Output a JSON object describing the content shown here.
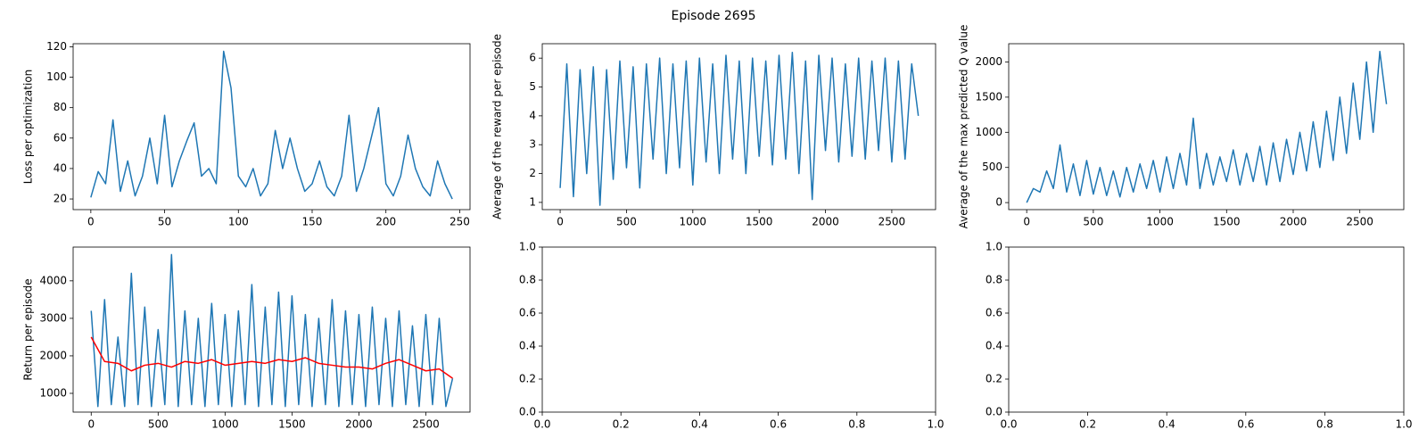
{
  "title": "Episode 2695",
  "chart_data": [
    {
      "type": "line",
      "ylabel": "Loss per optimization",
      "xlim": [
        -12,
        257
      ],
      "xticks": [
        0,
        50,
        100,
        150,
        200,
        250
      ],
      "ylim": [
        13,
        122
      ],
      "yticks": [
        20,
        40,
        60,
        80,
        100,
        120
      ],
      "series": [
        {
          "color": "#1f77b4",
          "x": [
            0,
            5,
            10,
            15,
            20,
            25,
            30,
            35,
            40,
            45,
            50,
            55,
            60,
            65,
            70,
            75,
            80,
            85,
            90,
            95,
            100,
            105,
            110,
            115,
            120,
            125,
            130,
            135,
            140,
            145,
            150,
            155,
            160,
            165,
            170,
            175,
            180,
            185,
            190,
            195,
            200,
            205,
            210,
            215,
            220,
            225,
            230,
            235,
            240,
            245
          ],
          "values": [
            21,
            38,
            30,
            72,
            25,
            45,
            22,
            35,
            60,
            30,
            75,
            28,
            45,
            58,
            70,
            35,
            40,
            30,
            117,
            93,
            35,
            28,
            40,
            22,
            30,
            65,
            40,
            60,
            40,
            25,
            30,
            45,
            28,
            22,
            35,
            75,
            25,
            40,
            60,
            80,
            30,
            22,
            35,
            62,
            40,
            28,
            22,
            45,
            30,
            20
          ]
        }
      ]
    },
    {
      "type": "line",
      "ylabel": "Average of the reward per episode",
      "xlim": [
        -135,
        2830
      ],
      "xticks": [
        0,
        500,
        1000,
        1500,
        2000,
        2500
      ],
      "ylim": [
        0.75,
        6.5
      ],
      "yticks": [
        1,
        2,
        3,
        4,
        5,
        6
      ],
      "series": [
        {
          "color": "#1f77b4",
          "x": [
            0,
            50,
            100,
            150,
            200,
            250,
            300,
            350,
            400,
            450,
            500,
            550,
            600,
            650,
            700,
            750,
            800,
            850,
            900,
            950,
            1000,
            1050,
            1100,
            1150,
            1200,
            1250,
            1300,
            1350,
            1400,
            1450,
            1500,
            1550,
            1600,
            1650,
            1700,
            1750,
            1800,
            1850,
            1900,
            1950,
            2000,
            2050,
            2100,
            2150,
            2200,
            2250,
            2300,
            2350,
            2400,
            2450,
            2500,
            2550,
            2600,
            2650,
            2700
          ],
          "values": [
            1.5,
            5.8,
            1.2,
            5.6,
            2.0,
            5.7,
            0.9,
            5.6,
            1.8,
            5.9,
            2.2,
            5.7,
            1.5,
            5.8,
            2.5,
            6.0,
            2.0,
            5.8,
            2.2,
            5.9,
            1.6,
            6.0,
            2.4,
            5.8,
            2.0,
            6.1,
            2.5,
            5.9,
            2.0,
            6.0,
            2.6,
            5.9,
            2.3,
            6.1,
            2.5,
            6.2,
            2.0,
            5.9,
            1.1,
            6.1,
            2.8,
            6.0,
            2.4,
            5.8,
            2.6,
            6.0,
            2.5,
            5.9,
            2.8,
            6.0,
            2.4,
            5.9,
            2.5,
            5.8,
            4.0
          ]
        }
      ]
    },
    {
      "type": "line",
      "ylabel": "Average of the max predicted Q value",
      "xlim": [
        -135,
        2830
      ],
      "xticks": [
        0,
        500,
        1000,
        1500,
        2000,
        2500
      ],
      "ylim": [
        -100,
        2260
      ],
      "yticks": [
        0,
        500,
        1000,
        1500,
        2000
      ],
      "series": [
        {
          "color": "#1f77b4",
          "x": [
            0,
            50,
            100,
            150,
            200,
            250,
            300,
            350,
            400,
            450,
            500,
            550,
            600,
            650,
            700,
            750,
            800,
            850,
            900,
            950,
            1000,
            1050,
            1100,
            1150,
            1200,
            1250,
            1300,
            1350,
            1400,
            1450,
            1500,
            1550,
            1600,
            1650,
            1700,
            1750,
            1800,
            1850,
            1900,
            1950,
            2000,
            2050,
            2100,
            2150,
            2200,
            2250,
            2300,
            2350,
            2400,
            2450,
            2500,
            2550,
            2600,
            2650,
            2700
          ],
          "values": [
            0,
            200,
            150,
            450,
            200,
            820,
            150,
            550,
            100,
            600,
            120,
            500,
            100,
            450,
            80,
            500,
            150,
            550,
            200,
            600,
            150,
            650,
            200,
            700,
            250,
            1200,
            200,
            700,
            250,
            650,
            300,
            750,
            250,
            700,
            300,
            800,
            250,
            850,
            300,
            900,
            400,
            1000,
            450,
            1150,
            500,
            1300,
            600,
            1500,
            700,
            1700,
            900,
            2000,
            1000,
            2150,
            1400
          ]
        }
      ]
    },
    {
      "type": "line",
      "ylabel": "Return per episode",
      "xlim": [
        -135,
        2830
      ],
      "xticks": [
        0,
        500,
        1000,
        1500,
        2000,
        2500
      ],
      "ylim": [
        500,
        4900
      ],
      "yticks": [
        1000,
        2000,
        3000,
        4000
      ],
      "series": [
        {
          "color": "#1f77b4",
          "x": [
            0,
            50,
            100,
            150,
            200,
            250,
            300,
            350,
            400,
            450,
            500,
            550,
            600,
            650,
            700,
            750,
            800,
            850,
            900,
            950,
            1000,
            1050,
            1100,
            1150,
            1200,
            1250,
            1300,
            1350,
            1400,
            1450,
            1500,
            1550,
            1600,
            1650,
            1700,
            1750,
            1800,
            1850,
            1900,
            1950,
            2000,
            2050,
            2100,
            2150,
            2200,
            2250,
            2300,
            2350,
            2400,
            2450,
            2500,
            2550,
            2600,
            2650,
            2700
          ],
          "values": [
            3200,
            650,
            3500,
            700,
            2500,
            650,
            4200,
            700,
            3300,
            650,
            2700,
            700,
            4700,
            650,
            3200,
            700,
            3000,
            650,
            3400,
            700,
            3100,
            650,
            3200,
            700,
            3900,
            650,
            3300,
            700,
            3700,
            650,
            3600,
            700,
            3100,
            650,
            3000,
            700,
            3500,
            650,
            3200,
            700,
            3100,
            650,
            3300,
            700,
            3000,
            650,
            3200,
            700,
            2800,
            650,
            3100,
            700,
            3000,
            650,
            1400
          ]
        },
        {
          "color": "#ff0000",
          "x": [
            0,
            100,
            200,
            300,
            400,
            500,
            600,
            700,
            800,
            900,
            1000,
            1100,
            1200,
            1300,
            1400,
            1500,
            1600,
            1700,
            1800,
            1900,
            2000,
            2100,
            2200,
            2300,
            2400,
            2500,
            2600,
            2700
          ],
          "values": [
            2500,
            1850,
            1800,
            1600,
            1750,
            1800,
            1700,
            1850,
            1800,
            1900,
            1750,
            1800,
            1850,
            1800,
            1900,
            1850,
            1950,
            1800,
            1750,
            1700,
            1700,
            1650,
            1800,
            1900,
            1750,
            1600,
            1650,
            1400
          ]
        }
      ]
    },
    {
      "type": "line",
      "xlim": [
        0,
        1
      ],
      "xticks": [
        {
          "value": 0,
          "label": "0.0"
        },
        {
          "value": 0.2,
          "label": "0.2"
        },
        {
          "value": 0.4,
          "label": "0.4"
        },
        {
          "value": 0.6,
          "label": "0.6"
        },
        {
          "value": 0.8,
          "label": "0.8"
        },
        {
          "value": 1,
          "label": "1.0"
        }
      ],
      "ylim": [
        0,
        1
      ],
      "yticks": [
        {
          "value": 0,
          "label": "0.0"
        },
        {
          "value": 0.2,
          "label": "0.2"
        },
        {
          "value": 0.4,
          "label": "0.4"
        },
        {
          "value": 0.6,
          "label": "0.6"
        },
        {
          "value": 0.8,
          "label": "0.8"
        },
        {
          "value": 1,
          "label": "1.0"
        }
      ],
      "series": []
    },
    {
      "type": "line",
      "xlim": [
        0,
        1
      ],
      "xticks": [
        {
          "value": 0,
          "label": "0.0"
        },
        {
          "value": 0.2,
          "label": "0.2"
        },
        {
          "value": 0.4,
          "label": "0.4"
        },
        {
          "value": 0.6,
          "label": "0.6"
        },
        {
          "value": 0.8,
          "label": "0.8"
        },
        {
          "value": 1,
          "label": "1.0"
        }
      ],
      "ylim": [
        0,
        1
      ],
      "yticks": [
        {
          "value": 0,
          "label": "0.0"
        },
        {
          "value": 0.2,
          "label": "0.2"
        },
        {
          "value": 0.4,
          "label": "0.4"
        },
        {
          "value": 0.6,
          "label": "0.6"
        },
        {
          "value": 0.8,
          "label": "0.8"
        },
        {
          "value": 1,
          "label": "1.0"
        }
      ],
      "series": []
    }
  ]
}
